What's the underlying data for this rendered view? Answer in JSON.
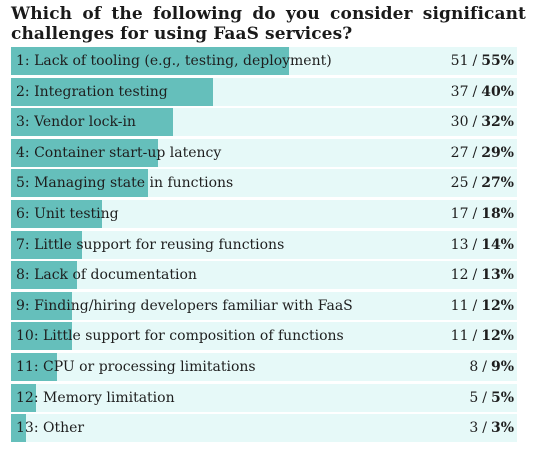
{
  "chart_data": {
    "type": "bar",
    "orientation": "horizontal",
    "title": "Which of the following do you consider significant challenges for using FaaS services?",
    "xlim": [
      0,
      100
    ],
    "grid": false,
    "legend": "none",
    "colors": {
      "bar": "#65bfbb",
      "track": "#e6f9f8"
    },
    "items": [
      {
        "label": "1: Lack of tooling (e.g., testing, deployment)",
        "count": 51,
        "percent": 55,
        "percent_label": "55%"
      },
      {
        "label": "2: Integration testing",
        "count": 37,
        "percent": 40,
        "percent_label": "40%"
      },
      {
        "label": "3: Vendor lock-in",
        "count": 30,
        "percent": 32,
        "percent_label": "32%"
      },
      {
        "label": "4: Container start-up latency",
        "count": 27,
        "percent": 29,
        "percent_label": "29%"
      },
      {
        "label": "5: Managing state in functions",
        "count": 25,
        "percent": 27,
        "percent_label": "27%"
      },
      {
        "label": "6: Unit testing",
        "count": 17,
        "percent": 18,
        "percent_label": "18%"
      },
      {
        "label": "7: Little support for reusing functions",
        "count": 13,
        "percent": 14,
        "percent_label": "14%"
      },
      {
        "label": "8: Lack of documentation",
        "count": 12,
        "percent": 13,
        "percent_label": "13%"
      },
      {
        "label": "9: Finding/hiring developers familiar with FaaS",
        "count": 11,
        "percent": 12,
        "percent_label": "12%"
      },
      {
        "label": "10: Little support for composition of functions",
        "count": 11,
        "percent": 12,
        "percent_label": "12%"
      },
      {
        "label": "11: CPU or processing limitations",
        "count": 8,
        "percent": 9,
        "percent_label": "9%"
      },
      {
        "label": "12: Memory limitation",
        "count": 5,
        "percent": 5,
        "percent_label": "5%"
      },
      {
        "label": "13: Other",
        "count": 3,
        "percent": 3,
        "percent_label": "3%"
      }
    ]
  }
}
